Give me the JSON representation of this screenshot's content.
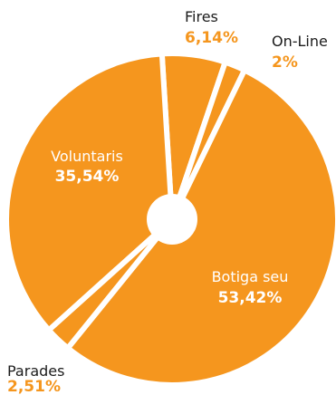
{
  "chart_data": {
    "type": "pie",
    "donut": true,
    "colors": {
      "slice": "#F5961E",
      "separator": "#FFFFFF",
      "label_dark": "#1C1C1C",
      "label_on_slice": "#FFFFFF",
      "value_outside": "#F5961E"
    },
    "slices": [
      {
        "label": "Fires",
        "value": 6.14,
        "value_label": "6,14%"
      },
      {
        "label": "On-Line",
        "value": 2,
        "value_label": "2%"
      },
      {
        "label": "Botiga seu",
        "value": 53.42,
        "value_label": "53,42%"
      },
      {
        "label": "Parades",
        "value": 2.51,
        "value_label": "2,51%"
      },
      {
        "label": "Voluntaris",
        "value": 35.54,
        "value_label": "35,54%"
      }
    ]
  }
}
